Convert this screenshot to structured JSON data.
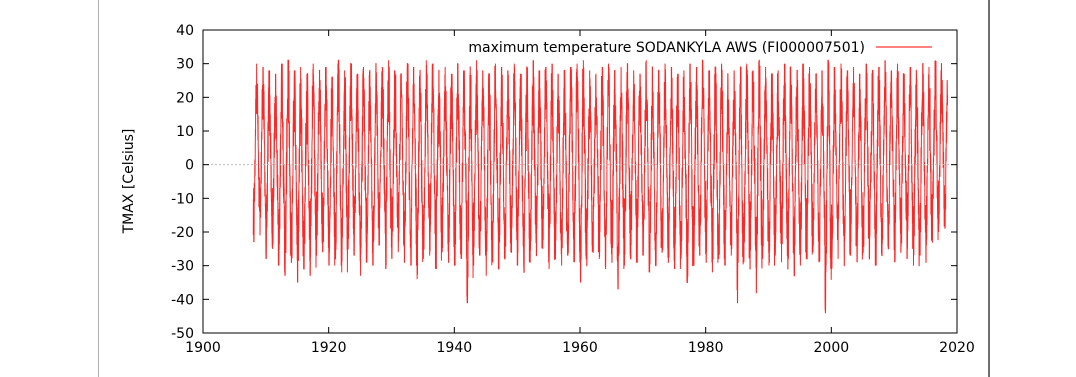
{
  "chart_data": {
    "type": "line",
    "title": "",
    "xlabel": "",
    "ylabel": "TMAX [Celsius]",
    "xlim": [
      1900,
      2020
    ],
    "ylim": [
      -50,
      40
    ],
    "x_ticks": [
      1900,
      1920,
      1940,
      1960,
      1980,
      2000,
      2020
    ],
    "y_ticks": [
      -50,
      -40,
      -30,
      -20,
      -10,
      0,
      10,
      20,
      30,
      40
    ],
    "grid": false,
    "legend_position": "top-right",
    "zero_line": true,
    "series": [
      {
        "name": "maximum temperature SODANKYLA AWS (FI000007501)",
        "color": "#ff0000",
        "data_start_year": 1908,
        "data_end_year": 2018.5,
        "annual_max": [
          30,
          29,
          28,
          27,
          30,
          31,
          28,
          29,
          27,
          30,
          28,
          29,
          26,
          31,
          28,
          30,
          27,
          29,
          28,
          30,
          29,
          31,
          28,
          27,
          30,
          29,
          28,
          31,
          30,
          28,
          29,
          27,
          30,
          28,
          29,
          31,
          28,
          27,
          30,
          29,
          28,
          30,
          27,
          29,
          31,
          28,
          29,
          30,
          27,
          28,
          29,
          30,
          31,
          28,
          27,
          29,
          30,
          28,
          29,
          30,
          28,
          27,
          31,
          29,
          28,
          30,
          29,
          27,
          28,
          30,
          29,
          31,
          28,
          29,
          30,
          27,
          28,
          29,
          30,
          28,
          31,
          29,
          27,
          28,
          30,
          29,
          28,
          30,
          29,
          27,
          28,
          31,
          29,
          30,
          28,
          29,
          27,
          30,
          28,
          29,
          31,
          28,
          30,
          27,
          29,
          28,
          30,
          29,
          31,
          30,
          31
        ],
        "annual_min": [
          -23,
          -21,
          -28,
          -25,
          -30,
          -33,
          -29,
          -35,
          -31,
          -33,
          -27,
          -26,
          -30,
          -28,
          -32,
          -25,
          -27,
          -33,
          -29,
          -30,
          -24,
          -31,
          -28,
          -26,
          -29,
          -30,
          -34,
          -28,
          -27,
          -31,
          -26,
          -29,
          -30,
          -28,
          -41,
          -30,
          -27,
          -33,
          -29,
          -31,
          -28,
          -26,
          -30,
          -32,
          -29,
          -27,
          -25,
          -31,
          -28,
          -30,
          -27,
          -29,
          -35,
          -30,
          -26,
          -28,
          -31,
          -29,
          -37,
          -30,
          -28,
          -29,
          -27,
          -32,
          -30,
          -26,
          -29,
          -31,
          -28,
          -35,
          -30,
          -27,
          -29,
          -32,
          -28,
          -30,
          -27,
          -41,
          -29,
          -31,
          -38,
          -28,
          -30,
          -27,
          -29,
          -31,
          -33,
          -30,
          -28,
          -26,
          -29,
          -44,
          -31,
          -28,
          -30,
          -27,
          -29,
          -26,
          -28,
          -30,
          -27,
          -25,
          -29,
          -26,
          -28,
          -30,
          -27,
          -29,
          -23,
          -20,
          -19
        ]
      }
    ]
  }
}
